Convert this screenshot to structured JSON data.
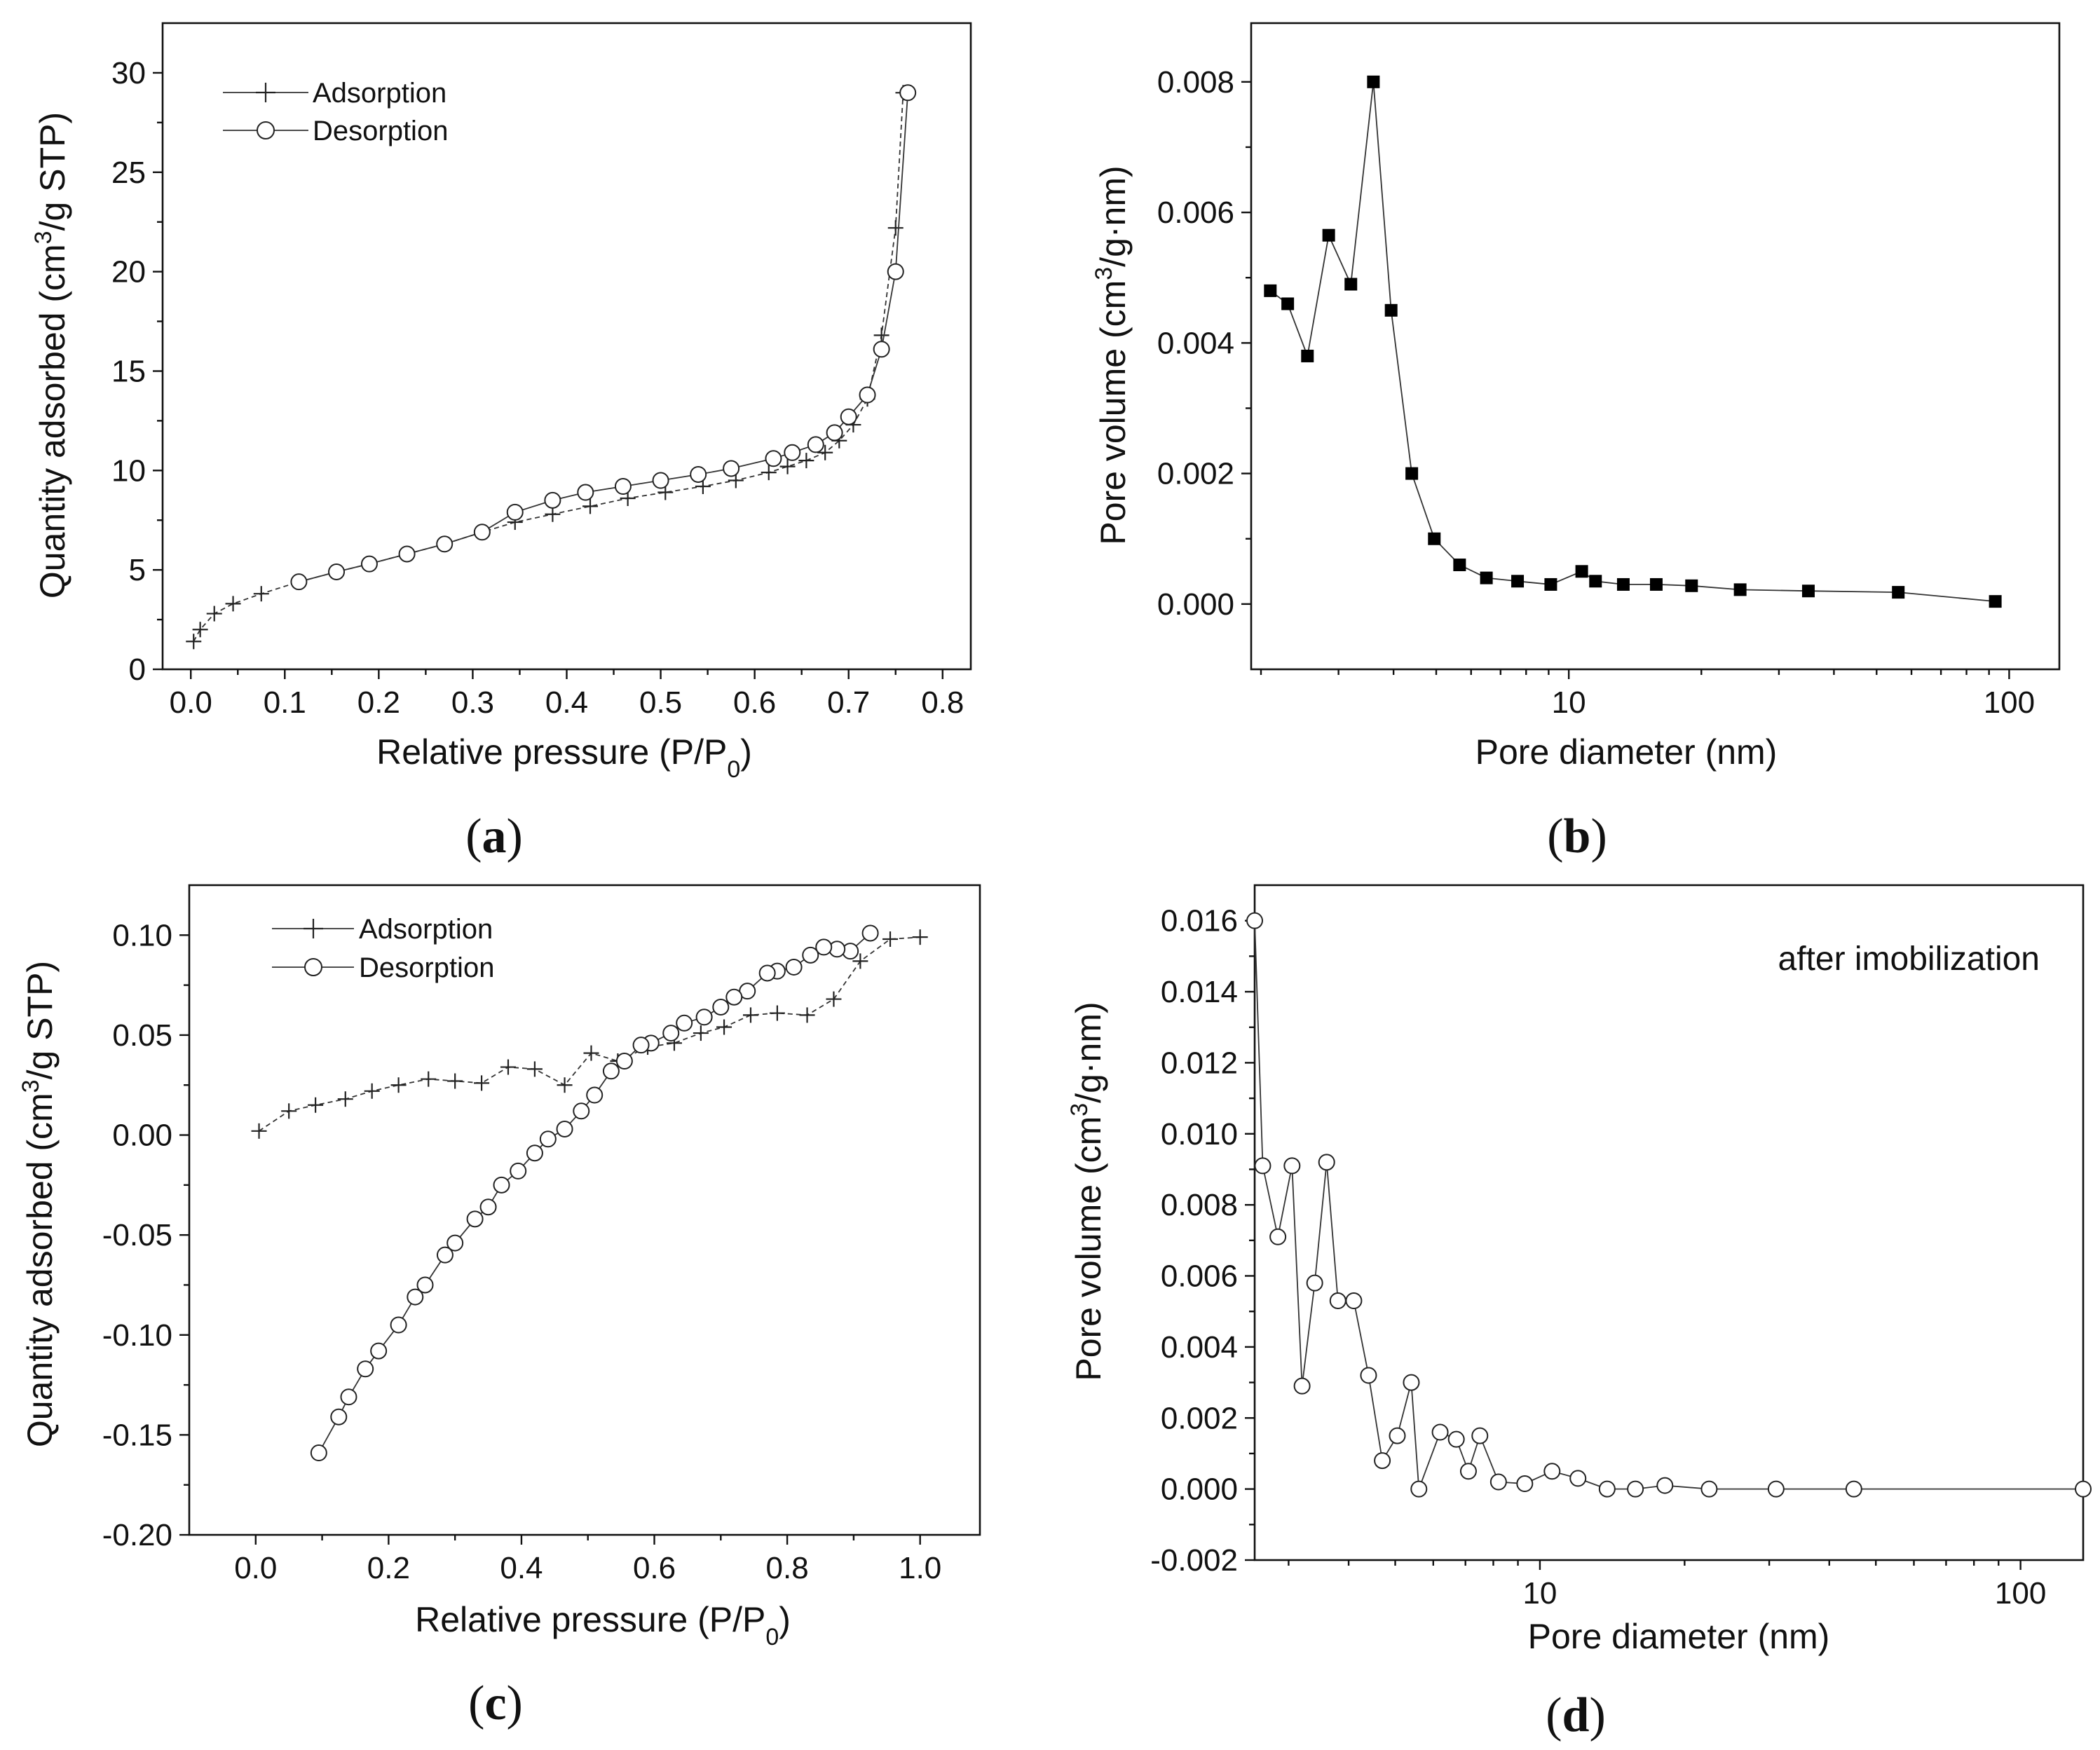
{
  "chart_data": [
    {
      "type": "line",
      "panel_label": "a",
      "xlabel": "Relative pressure (P/P",
      "xlabel_sub": "0",
      "xlabel_end": ")",
      "ylabel": "Quantity adsorbed (cm",
      "ylabel_sup": "3",
      "ylabel_end": "/g STP)",
      "xlim": [
        -0.03,
        0.83
      ],
      "ylim": [
        0,
        32.5
      ],
      "xticks": [
        0.0,
        0.1,
        0.2,
        0.3,
        0.4,
        0.5,
        0.6,
        0.7,
        0.8
      ],
      "xtick_labels": [
        "0.0",
        "0.1",
        "0.2",
        "0.3",
        "0.4",
        "0.5",
        "0.6",
        "0.7",
        "0.8"
      ],
      "yticks": [
        0,
        5,
        10,
        15,
        20,
        25,
        30
      ],
      "ytick_labels": [
        "0",
        "5",
        "10",
        "15",
        "20",
        "25",
        "30"
      ],
      "xscale": "linear",
      "legend": "top-left",
      "series": [
        {
          "name": "Adsorption",
          "marker": "plus",
          "line": "dashed",
          "x": [
            0.003,
            0.01,
            0.025,
            0.045,
            0.075,
            0.115,
            0.155,
            0.19,
            0.23,
            0.27,
            0.31,
            0.345,
            0.385,
            0.425,
            0.465,
            0.505,
            0.545,
            0.58,
            0.615,
            0.635,
            0.655,
            0.675,
            0.69,
            0.705,
            0.72,
            0.735,
            0.75,
            0.758,
            0.763
          ],
          "y": [
            1.4,
            2.0,
            2.8,
            3.3,
            3.8,
            4.4,
            4.9,
            5.3,
            5.8,
            6.3,
            6.9,
            7.4,
            7.8,
            8.2,
            8.6,
            8.9,
            9.2,
            9.5,
            9.9,
            10.2,
            10.5,
            10.9,
            11.5,
            12.3,
            13.6,
            16.8,
            22.2,
            29.0,
            29.0
          ]
        },
        {
          "name": "Desorption",
          "marker": "circle",
          "line": "solid",
          "x": [
            0.763,
            0.75,
            0.735,
            0.72,
            0.7,
            0.685,
            0.665,
            0.64,
            0.62,
            0.575,
            0.54,
            0.5,
            0.46,
            0.42,
            0.385,
            0.345,
            0.31,
            0.27,
            0.23,
            0.19,
            0.155,
            0.115
          ],
          "y": [
            29.0,
            20.0,
            16.1,
            13.8,
            12.7,
            11.9,
            11.3,
            10.9,
            10.6,
            10.1,
            9.8,
            9.5,
            9.2,
            8.9,
            8.5,
            7.9,
            6.9,
            6.3,
            5.8,
            5.3,
            4.9,
            4.4
          ]
        }
      ]
    },
    {
      "type": "line",
      "panel_label": "b",
      "xlabel": "Pore diameter (nm)",
      "ylabel": "Pore volume (cm",
      "ylabel_sup": "3",
      "ylabel_end": "/g·nm)",
      "xscale": "log",
      "xlim": [
        1.9,
        130
      ],
      "ylim": [
        -0.001,
        0.0089
      ],
      "xticks": [
        10,
        100
      ],
      "xtick_labels": [
        "10",
        "100"
      ],
      "yticks": [
        0.0,
        0.002,
        0.004,
        0.006,
        0.008
      ],
      "ytick_labels": [
        "0.000",
        "0.002",
        "0.004",
        "0.006",
        "0.008"
      ],
      "legend": "none",
      "series": [
        {
          "name": "Pore volume",
          "marker": "square",
          "line": "solid",
          "x": [
            2.1,
            2.3,
            2.55,
            2.85,
            3.2,
            3.6,
            3.95,
            4.4,
            4.95,
            5.65,
            6.5,
            7.65,
            9.1,
            10.7,
            11.5,
            13.3,
            15.8,
            19.0,
            24.5,
            35.0,
            56.0,
            93.0
          ],
          "y": [
            0.0048,
            0.0046,
            0.0038,
            0.00565,
            0.0049,
            0.008,
            0.0045,
            0.002,
            0.001,
            0.0006,
            0.0004,
            0.00035,
            0.0003,
            0.0005,
            0.00035,
            0.0003,
            0.0003,
            0.00028,
            0.00022,
            0.0002,
            0.00018,
            4e-05
          ]
        }
      ]
    },
    {
      "type": "line",
      "panel_label": "c",
      "xlabel": "Relative pressure (P/P",
      "xlabel_sub": "0",
      "xlabel_end": ")",
      "ylabel": "Quantity adsorbed (cm",
      "ylabel_sup": "3",
      "ylabel_end": "/g STP)",
      "xlim": [
        -0.1,
        1.09
      ],
      "ylim": [
        -0.2,
        0.125
      ],
      "xticks": [
        0.0,
        0.2,
        0.4,
        0.6,
        0.8,
        1.0
      ],
      "xtick_labels": [
        "0.0",
        "0.2",
        "0.4",
        "0.6",
        "0.8",
        "1.0"
      ],
      "yticks": [
        -0.2,
        -0.15,
        -0.1,
        -0.05,
        0.0,
        0.05,
        0.1
      ],
      "ytick_labels": [
        "-0.20",
        "-0.15",
        "-0.10",
        "-0.05",
        "0.00",
        "0.05",
        "0.10"
      ],
      "xscale": "linear",
      "legend": "top-left",
      "series": [
        {
          "name": "Adsorption",
          "marker": "plus",
          "line": "dashed",
          "x": [
            0.005,
            0.05,
            0.09,
            0.135,
            0.175,
            0.215,
            0.26,
            0.3,
            0.34,
            0.38,
            0.42,
            0.465,
            0.505,
            0.545,
            0.59,
            0.63,
            0.67,
            0.705,
            0.745,
            0.785,
            0.83,
            0.87,
            0.91,
            0.955,
            1.0
          ],
          "y": [
            0.002,
            0.012,
            0.015,
            0.018,
            0.022,
            0.025,
            0.028,
            0.027,
            0.026,
            0.034,
            0.033,
            0.025,
            0.041,
            0.037,
            0.044,
            0.046,
            0.051,
            0.054,
            0.06,
            0.061,
            0.06,
            0.068,
            0.087,
            0.098,
            0.099
          ]
        },
        {
          "name": "Desorption",
          "marker": "circle",
          "line": "solid",
          "x": [
            0.925,
            0.895,
            0.875,
            0.855,
            0.835,
            0.81,
            0.785,
            0.77,
            0.74,
            0.72,
            0.7,
            0.675,
            0.645,
            0.625,
            0.595,
            0.58,
            0.555,
            0.535,
            0.51,
            0.49,
            0.465,
            0.44,
            0.42,
            0.395,
            0.37,
            0.35,
            0.33,
            0.3,
            0.285,
            0.255,
            0.24,
            0.215,
            0.185,
            0.165,
            0.14,
            0.125,
            0.095
          ],
          "y": [
            0.101,
            0.092,
            0.093,
            0.094,
            0.09,
            0.084,
            0.082,
            0.081,
            0.072,
            0.069,
            0.064,
            0.059,
            0.056,
            0.051,
            0.046,
            0.045,
            0.037,
            0.032,
            0.02,
            0.012,
            0.003,
            -0.002,
            -0.009,
            -0.018,
            -0.025,
            -0.036,
            -0.042,
            -0.054,
            -0.06,
            -0.075,
            -0.081,
            -0.095,
            -0.108,
            -0.117,
            -0.131,
            -0.141,
            -0.159
          ]
        }
      ]
    },
    {
      "type": "line",
      "panel_label": "d",
      "annotation": "after imobilization",
      "xlabel": "Pore diameter (nm)",
      "ylabel": "Pore volume (cm",
      "ylabel_sup": "3",
      "ylabel_end": "/g·nm)",
      "xscale": "log",
      "xlim": [
        2.55,
        135
      ],
      "ylim": [
        -0.002,
        0.017
      ],
      "xticks": [
        10,
        100
      ],
      "xtick_labels": [
        "10",
        "100"
      ],
      "yticks": [
        -0.002,
        0.0,
        0.002,
        0.004,
        0.006,
        0.008,
        0.01,
        0.012,
        0.014,
        0.016
      ],
      "ytick_labels": [
        "-0.002",
        "0.000",
        "0.002",
        "0.004",
        "0.006",
        "0.008",
        "0.010",
        "0.012",
        "0.014",
        "0.016"
      ],
      "legend": "none",
      "series": [
        {
          "name": "Pore volume",
          "marker": "circle",
          "line": "solid",
          "x": [
            2.55,
            2.65,
            2.85,
            3.05,
            3.2,
            3.4,
            3.6,
            3.8,
            4.1,
            4.4,
            4.7,
            5.05,
            5.4,
            5.6,
            6.2,
            6.7,
            7.1,
            7.5,
            8.2,
            9.3,
            10.6,
            12.0,
            13.8,
            15.8,
            18.2,
            22.5,
            31.0,
            45.0,
            135
          ],
          "y": [
            0.016,
            0.0091,
            0.0071,
            0.0091,
            0.0029,
            0.0058,
            0.0092,
            0.0053,
            0.0053,
            0.0032,
            0.0008,
            0.0015,
            0.003,
            0.0,
            0.0016,
            0.0014,
            0.0005,
            0.0015,
            0.0002,
            0.00015,
            0.0005,
            0.0003,
            0.0,
            0.0,
            0.0001,
            0.0,
            0.0,
            0.0,
            0.0
          ]
        }
      ]
    }
  ]
}
